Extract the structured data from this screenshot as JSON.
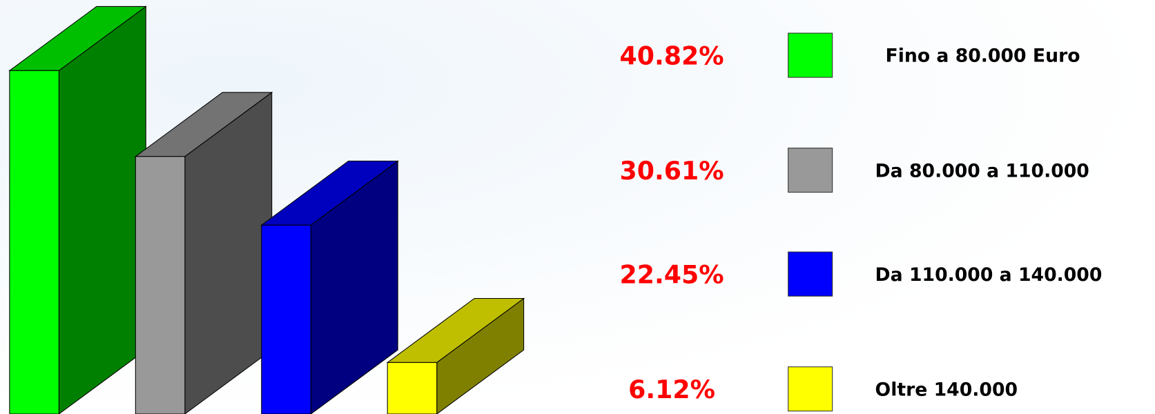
{
  "chart_data": {
    "type": "bar3d",
    "categories": [
      "Fino a 80.000 Euro",
      "Da 80.000 a 110.000",
      "Da 110.000 a 140.000",
      "Oltre 140.000"
    ],
    "values": [
      40.82,
      30.61,
      22.45,
      6.12
    ],
    "value_labels": [
      "40.82%",
      "30.61%",
      "22.45%",
      "6.12%"
    ],
    "colors": [
      "#00ff00",
      "#999999",
      "#0000ff",
      "#ffff00"
    ]
  }
}
